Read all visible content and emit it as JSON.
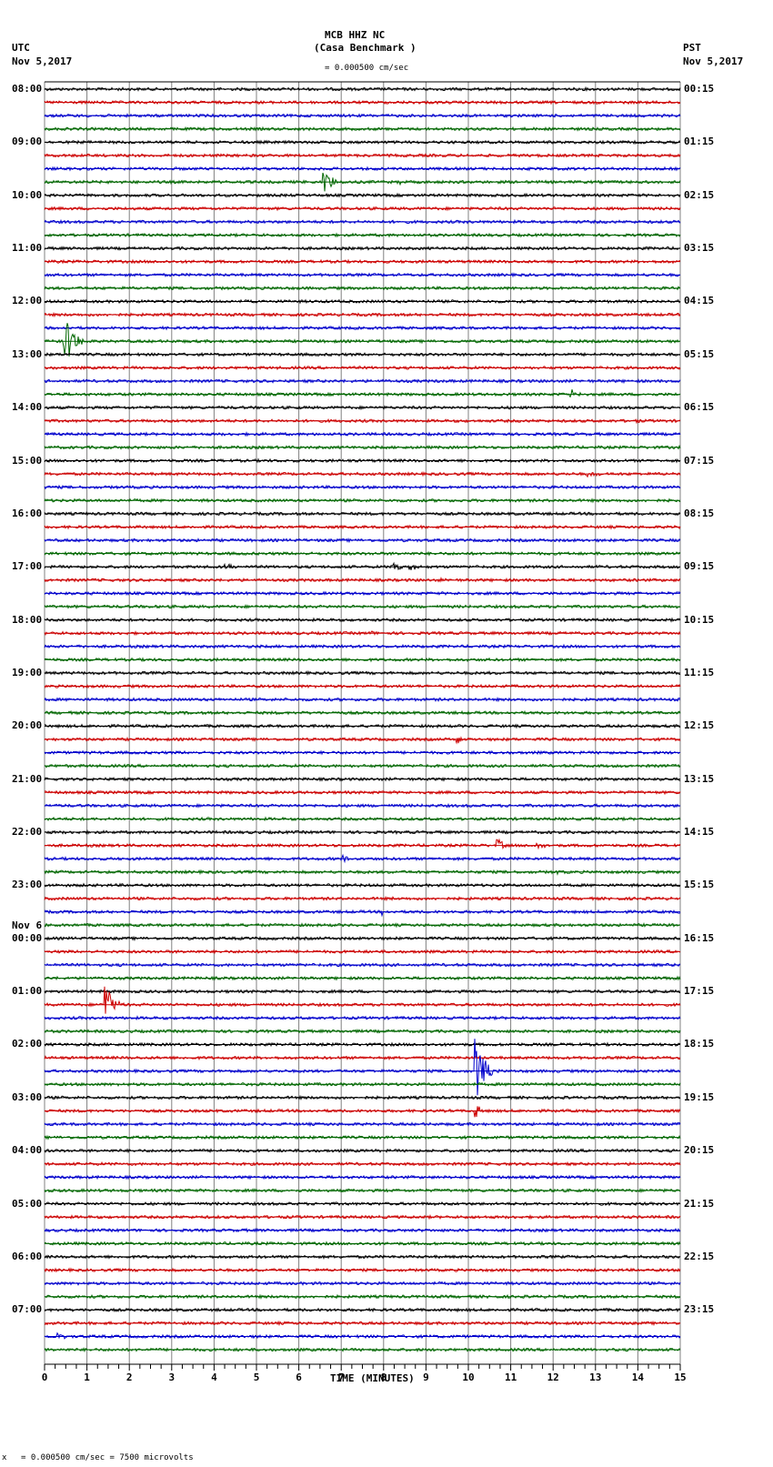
{
  "header": {
    "station": "MCB HHZ NC",
    "site": "(Casa Benchmark )",
    "left_tz": "UTC",
    "left_date": "Nov 5,2017",
    "right_tz": "PST",
    "right_date": "Nov 5,2017",
    "scale_label": "= 0.000500 cm/sec"
  },
  "footer": {
    "scale_note": "= 0.000500 cm/sec =    7500 microvolts",
    "marker": "x"
  },
  "colors": {
    "trace_cycle": [
      "#000000",
      "#cc0000",
      "#0000cc",
      "#006600"
    ],
    "grid": "#808080"
  },
  "chart_data": {
    "type": "line",
    "title": "MCB HHZ NC (Casa Benchmark )",
    "xlabel": "TIME (MINUTES)",
    "ylabel": "",
    "xlim": [
      0,
      15
    ],
    "x_ticks": [
      "0",
      "1",
      "2",
      "3",
      "4",
      "5",
      "6",
      "7",
      "8",
      "9",
      "10",
      "11",
      "12",
      "13",
      "14",
      "15"
    ],
    "traces_per_hour": 4,
    "trace_minutes": 15,
    "num_traces": 96,
    "grid": true,
    "left_labels": [
      "08:00",
      "09:00",
      "10:00",
      "11:00",
      "12:00",
      "13:00",
      "14:00",
      "15:00",
      "16:00",
      "17:00",
      "18:00",
      "19:00",
      "20:00",
      "21:00",
      "22:00",
      "23:00",
      "00:00",
      "01:00",
      "02:00",
      "03:00",
      "04:00",
      "05:00",
      "06:00",
      "07:00"
    ],
    "left_date_change": {
      "label": "Nov 6",
      "before_hour_index": 16
    },
    "right_labels": [
      "00:15",
      "01:15",
      "02:15",
      "03:15",
      "04:15",
      "05:15",
      "06:15",
      "07:15",
      "08:15",
      "09:15",
      "10:15",
      "11:15",
      "12:15",
      "13:15",
      "14:15",
      "15:15",
      "16:15",
      "17:15",
      "18:15",
      "19:15",
      "20:15",
      "21:15",
      "22:15",
      "23:15"
    ],
    "events": [
      {
        "trace": 7,
        "minute": 6.55,
        "amp": 14,
        "dur": 0.6
      },
      {
        "trace": 7,
        "minute": 8.35,
        "amp": 6,
        "dur": 0.2
      },
      {
        "trace": 16,
        "minute": 4.9,
        "amp": 3,
        "dur": 0.3
      },
      {
        "trace": 19,
        "minute": 0.45,
        "amp": 30,
        "dur": 0.6
      },
      {
        "trace": 23,
        "minute": 12.4,
        "amp": 5,
        "dur": 0.4
      },
      {
        "trace": 25,
        "minute": 13.95,
        "amp": 4,
        "dur": 0.1
      },
      {
        "trace": 29,
        "minute": 12.8,
        "amp": 3,
        "dur": 0.5
      },
      {
        "trace": 36,
        "minute": 8.2,
        "amp": 9,
        "dur": 0.3
      },
      {
        "trace": 36,
        "minute": 8.6,
        "amp": 7,
        "dur": 0.3
      },
      {
        "trace": 36,
        "minute": 4.2,
        "amp": 3,
        "dur": 0.6
      },
      {
        "trace": 37,
        "minute": 9.3,
        "amp": 3,
        "dur": 0.2
      },
      {
        "trace": 41,
        "minute": 7.7,
        "amp": 5,
        "dur": 0.1
      },
      {
        "trace": 49,
        "minute": 9.7,
        "amp": 7,
        "dur": 0.3
      },
      {
        "trace": 57,
        "minute": 10.65,
        "amp": 9,
        "dur": 0.4
      },
      {
        "trace": 57,
        "minute": 11.6,
        "amp": 4,
        "dur": 0.4
      },
      {
        "trace": 58,
        "minute": 7.0,
        "amp": 5,
        "dur": 0.6
      },
      {
        "trace": 58,
        "minute": 13.4,
        "amp": 4,
        "dur": 0.1
      },
      {
        "trace": 59,
        "minute": 12.1,
        "amp": 4,
        "dur": 0.1
      },
      {
        "trace": 61,
        "minute": 8.2,
        "amp": 3,
        "dur": 0.1
      },
      {
        "trace": 62,
        "minute": 7.95,
        "amp": 4,
        "dur": 0.1
      },
      {
        "trace": 69,
        "minute": 1.4,
        "amp": 30,
        "dur": 0.5
      },
      {
        "trace": 74,
        "minute": 10.15,
        "amp": 35,
        "dur": 0.6
      },
      {
        "trace": 77,
        "minute": 10.15,
        "amp": 16,
        "dur": 0.2
      },
      {
        "trace": 94,
        "minute": 0.3,
        "amp": 5,
        "dur": 0.3
      }
    ]
  }
}
